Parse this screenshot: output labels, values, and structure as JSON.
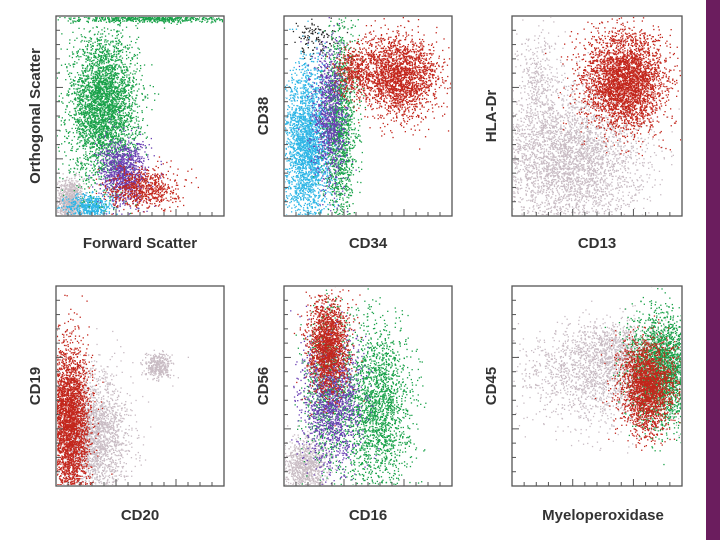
{
  "chart_data": [
    {
      "type": "scatter",
      "xlabel": "Forward Scatter",
      "ylabel": "Orthogonal Scatter",
      "xlim": [
        0,
        100
      ],
      "ylim": [
        0,
        100
      ],
      "series": [
        {
          "name": "gray",
          "color": "#c9bcc4",
          "clusters": [
            {
              "cx": 8,
              "cy": 7,
              "sx": 4,
              "sy": 6,
              "n": 900
            }
          ]
        },
        {
          "name": "cyan",
          "color": "#2fb6e6",
          "clusters": [
            {
              "cx": 20,
              "cy": 5,
              "sx": 7,
              "sy": 3,
              "n": 500
            }
          ]
        },
        {
          "name": "green",
          "color": "#1aa24a",
          "clusters": [
            {
              "cx": 28,
              "cy": 55,
              "sx": 10,
              "sy": 18,
              "n": 3500
            },
            {
              "cx": 55,
              "cy": 99,
              "sx": 25,
              "sy": 1,
              "n": 600
            }
          ]
        },
        {
          "name": "purple",
          "color": "#6a3fb4",
          "clusters": [
            {
              "cx": 40,
              "cy": 22,
              "sx": 7,
              "sy": 8,
              "n": 1100
            }
          ]
        },
        {
          "name": "red",
          "color": "#c3261c",
          "clusters": [
            {
              "cx": 52,
              "cy": 14,
              "sx": 10,
              "sy": 5,
              "n": 700
            }
          ]
        }
      ]
    },
    {
      "type": "scatter",
      "xlabel": "CD34",
      "ylabel": "CD38",
      "xlim": [
        0,
        100
      ],
      "ylim": [
        0,
        100
      ],
      "series": [
        {
          "name": "black",
          "color": "#222222",
          "clusters": [
            {
              "cx": 20,
              "cy": 90,
              "sx": 8,
              "sy": 5,
              "n": 120
            }
          ]
        },
        {
          "name": "cyan",
          "color": "#2fb6e6",
          "clusters": [
            {
              "cx": 14,
              "cy": 35,
              "sx": 7,
              "sy": 20,
              "n": 2600
            }
          ]
        },
        {
          "name": "green",
          "color": "#1aa24a",
          "clusters": [
            {
              "cx": 33,
              "cy": 45,
              "sx": 5,
              "sy": 24,
              "n": 1500
            }
          ]
        },
        {
          "name": "purple",
          "color": "#6a3fb4",
          "clusters": [
            {
              "cx": 27,
              "cy": 50,
              "sx": 5,
              "sy": 18,
              "n": 1000
            }
          ]
        },
        {
          "name": "red",
          "color": "#c3261c",
          "clusters": [
            {
              "cx": 68,
              "cy": 70,
              "sx": 12,
              "sy": 10,
              "n": 2200
            },
            {
              "cx": 42,
              "cy": 73,
              "sx": 6,
              "sy": 6,
              "n": 400
            }
          ]
        }
      ]
    },
    {
      "type": "scatter",
      "xlabel": "CD13",
      "ylabel": "HLA-Dr",
      "xlim": [
        0,
        100
      ],
      "ylim": [
        0,
        100
      ],
      "series": [
        {
          "name": "gray",
          "color": "#c9bcc4",
          "clusters": [
            {
              "cx": 32,
              "cy": 28,
              "sx": 22,
              "sy": 18,
              "n": 3600
            },
            {
              "cx": 15,
              "cy": 70,
              "sx": 6,
              "sy": 12,
              "n": 300
            }
          ]
        },
        {
          "name": "red",
          "color": "#c3261c",
          "clusters": [
            {
              "cx": 66,
              "cy": 68,
              "sx": 12,
              "sy": 12,
              "n": 3400
            }
          ]
        }
      ]
    },
    {
      "type": "scatter",
      "xlabel": "CD20",
      "ylabel": "CD19",
      "xlim": [
        0,
        100
      ],
      "ylim": [
        0,
        100
      ],
      "series": [
        {
          "name": "gray",
          "color": "#c9bcc4",
          "clusters": [
            {
              "cx": 22,
              "cy": 25,
              "sx": 10,
              "sy": 15,
              "n": 2200
            },
            {
              "cx": 61,
              "cy": 60,
              "sx": 4,
              "sy": 3,
              "n": 350
            }
          ]
        },
        {
          "name": "red",
          "color": "#c3261c",
          "clusters": [
            {
              "cx": 8,
              "cy": 32,
              "sx": 6,
              "sy": 20,
              "n": 3200
            }
          ]
        }
      ]
    },
    {
      "type": "scatter",
      "xlabel": "CD16",
      "ylabel": "CD56",
      "xlim": [
        0,
        100
      ],
      "ylim": [
        0,
        100
      ],
      "series": [
        {
          "name": "gray",
          "color": "#c9bcc4",
          "clusters": [
            {
              "cx": 12,
              "cy": 10,
              "sx": 7,
              "sy": 7,
              "n": 900
            }
          ]
        },
        {
          "name": "green",
          "color": "#1aa24a",
          "clusters": [
            {
              "cx": 55,
              "cy": 40,
              "sx": 10,
              "sy": 20,
              "n": 2000
            },
            {
              "cx": 26,
              "cy": 50,
              "sx": 7,
              "sy": 20,
              "n": 900
            }
          ]
        },
        {
          "name": "purple",
          "color": "#6a3fb4",
          "clusters": [
            {
              "cx": 28,
              "cy": 42,
              "sx": 9,
              "sy": 16,
              "n": 1500
            }
          ]
        },
        {
          "name": "red",
          "color": "#c3261c",
          "clusters": [
            {
              "cx": 26,
              "cy": 70,
              "sx": 6,
              "sy": 12,
              "n": 1700
            }
          ]
        }
      ]
    },
    {
      "type": "scatter",
      "xlabel": "Myeloperoxidase",
      "ylabel": "CD45",
      "xlim": [
        0,
        100
      ],
      "ylim": [
        0,
        100
      ],
      "series": [
        {
          "name": "gray",
          "color": "#c9bcc4",
          "clusters": [
            {
              "cx": 55,
              "cy": 55,
              "sx": 25,
              "sy": 12,
              "n": 1800
            },
            {
              "cx": 60,
              "cy": 70,
              "sx": 16,
              "sy": 6,
              "n": 600
            }
          ]
        },
        {
          "name": "green",
          "color": "#1aa24a",
          "clusters": [
            {
              "cx": 88,
              "cy": 58,
              "sx": 9,
              "sy": 14,
              "n": 2400
            }
          ]
        },
        {
          "name": "red",
          "color": "#c3261c",
          "clusters": [
            {
              "cx": 79,
              "cy": 50,
              "sx": 8,
              "sy": 11,
              "n": 2200
            }
          ]
        }
      ]
    }
  ]
}
